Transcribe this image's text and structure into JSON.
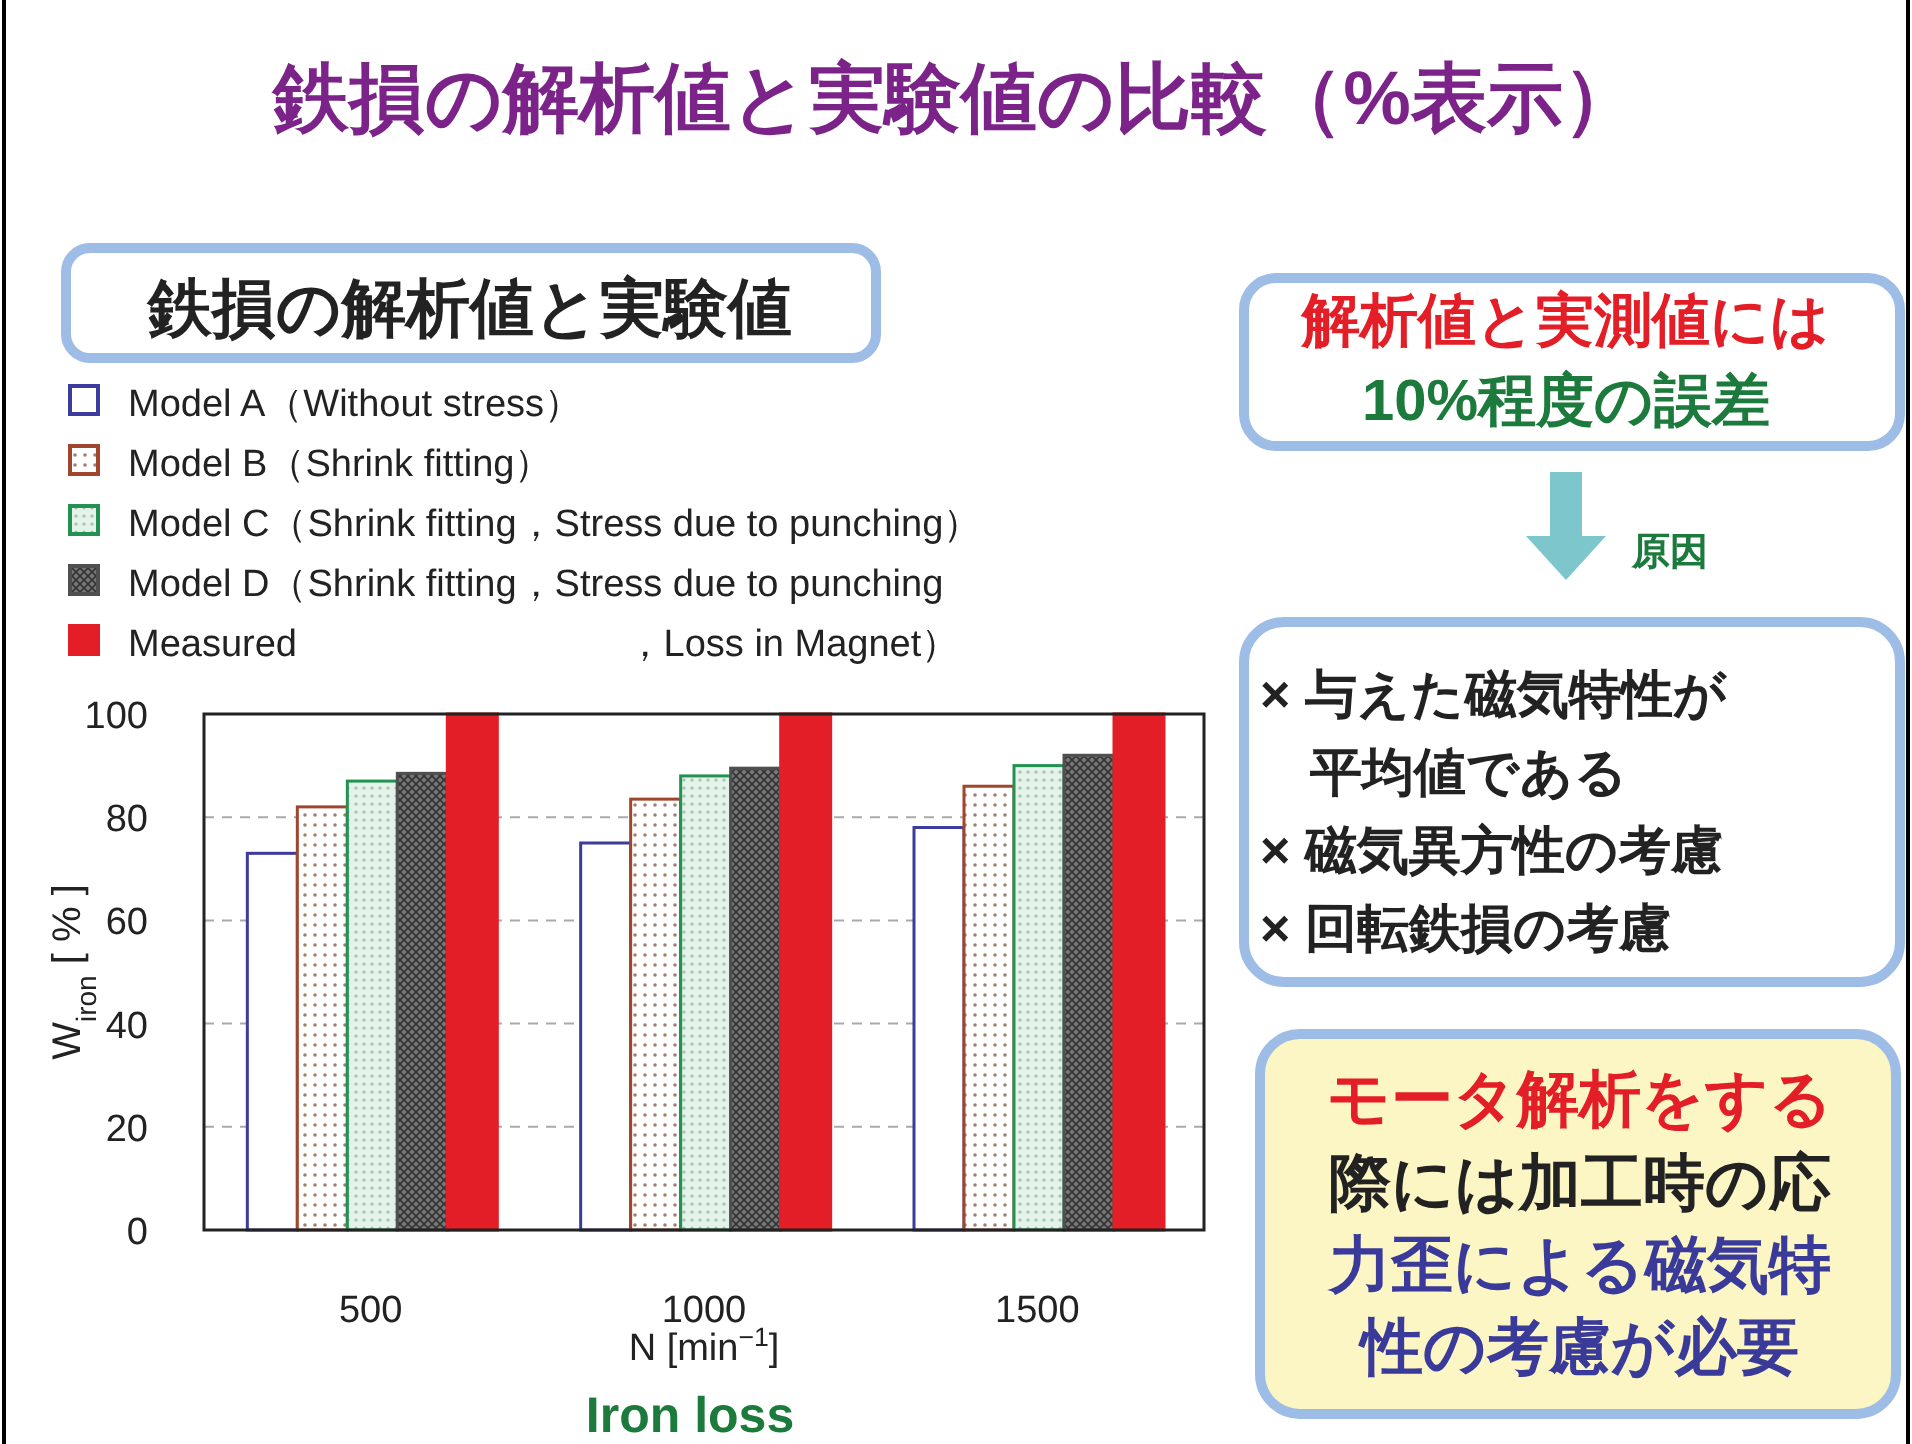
{
  "chart_data": {
    "type": "bar",
    "title": "鉄損の解析値と実験値の比較（%表示）",
    "subtitle": "鉄損の解析値と実験値",
    "xlabel": "N [min$^{−1}$]",
    "ylabel": "W$_{iron}$ [ % ]",
    "categories": [
      "500",
      "1000",
      "1500"
    ],
    "series": [
      {
        "name": "Model A（Without stress）",
        "color": "#3c3c9c",
        "values": [
          73,
          75,
          78
        ]
      },
      {
        "name": "Model B（Shrink fitting）",
        "color": "#a0462d",
        "values": [
          82,
          83.5,
          86
        ]
      },
      {
        "name": "Model C（Shrink fitting，Stress due to punching）",
        "color": "#239152",
        "values": [
          87,
          88,
          90
        ]
      },
      {
        "name": "Model D（Shrink fitting，Stress due to punching，Loss in Magnet）",
        "color": "#505050",
        "values": [
          88.5,
          89.5,
          92
        ]
      },
      {
        "name": "Measured",
        "color": "#e31e27",
        "values": [
          100,
          100,
          100
        ]
      }
    ],
    "ylim": [
      0,
      100
    ],
    "yticks": [
      0,
      20,
      40,
      60,
      80,
      100
    ],
    "grid": "y",
    "legend": "top",
    "annotations": [
      "解析値と実測値には",
      "10%程度の誤差",
      "原因",
      "× 与えた磁気特性が",
      "平均値である",
      "× 磁気異方性の考慮",
      "× 回転鉄損の考慮",
      "モータ解析をする",
      "際には加工時の応",
      "力歪による磁気特",
      "性の考慮が必要",
      "Iron loss"
    ]
  }
}
